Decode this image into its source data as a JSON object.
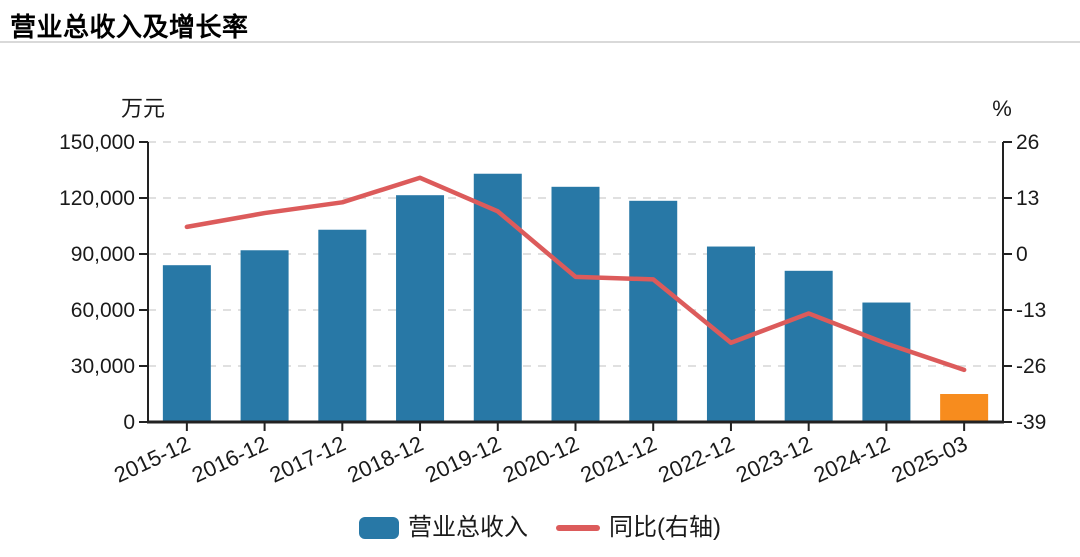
{
  "title": "营业总收入及增长率",
  "legend": [
    {
      "label": "营业总收入",
      "type": "bar"
    },
    {
      "label": "同比(右轴)",
      "type": "line"
    }
  ],
  "colors": {
    "bar": "#2878A6",
    "bar_highlight": "#F78C1E",
    "line": "#DC5B5B",
    "axis": "#222222",
    "grid": "#E0E0E0",
    "text": "#1a1a1a",
    "divider": "#D9D9D9"
  },
  "chart_data": {
    "type": "combo",
    "categories": [
      "2015-12",
      "2016-12",
      "2017-12",
      "2018-12",
      "2019-12",
      "2020-12",
      "2021-12",
      "2022-12",
      "2023-12",
      "2024-12",
      "2025-03"
    ],
    "series": [
      {
        "name": "营业总收入",
        "type": "bar",
        "y_axis": "left",
        "unit": "万元",
        "values": [
          84000,
          92000,
          103000,
          121500,
          133000,
          126000,
          118500,
          94000,
          81000,
          64000,
          15000
        ],
        "bar_colors": [
          "#2878A6",
          "#2878A6",
          "#2878A6",
          "#2878A6",
          "#2878A6",
          "#2878A6",
          "#2878A6",
          "#2878A6",
          "#2878A6",
          "#2878A6",
          "#F78C1E"
        ]
      },
      {
        "name": "同比(右轴)",
        "type": "line",
        "y_axis": "right",
        "unit": "%",
        "values": [
          6.3,
          9.5,
          12.0,
          17.7,
          9.9,
          -5.3,
          -5.9,
          -20.6,
          -13.8,
          -20.8,
          -26.9
        ]
      }
    ],
    "left_axis": {
      "title": "万元",
      "min": 0,
      "max": 150000,
      "ticks": [
        0,
        30000,
        60000,
        90000,
        120000,
        150000
      ],
      "tick_labels": [
        "0",
        "30,000",
        "60,000",
        "90,000",
        "120,000",
        "150,000"
      ]
    },
    "right_axis": {
      "title": "%",
      "min": -39,
      "max": 26,
      "ticks": [
        -39,
        -26,
        -13,
        0,
        13,
        26
      ],
      "tick_labels": [
        "-39",
        "-26",
        "-13",
        "0",
        "13",
        "26"
      ]
    },
    "grid": true,
    "legend_position": "bottom",
    "x_label_rotation": -25
  }
}
